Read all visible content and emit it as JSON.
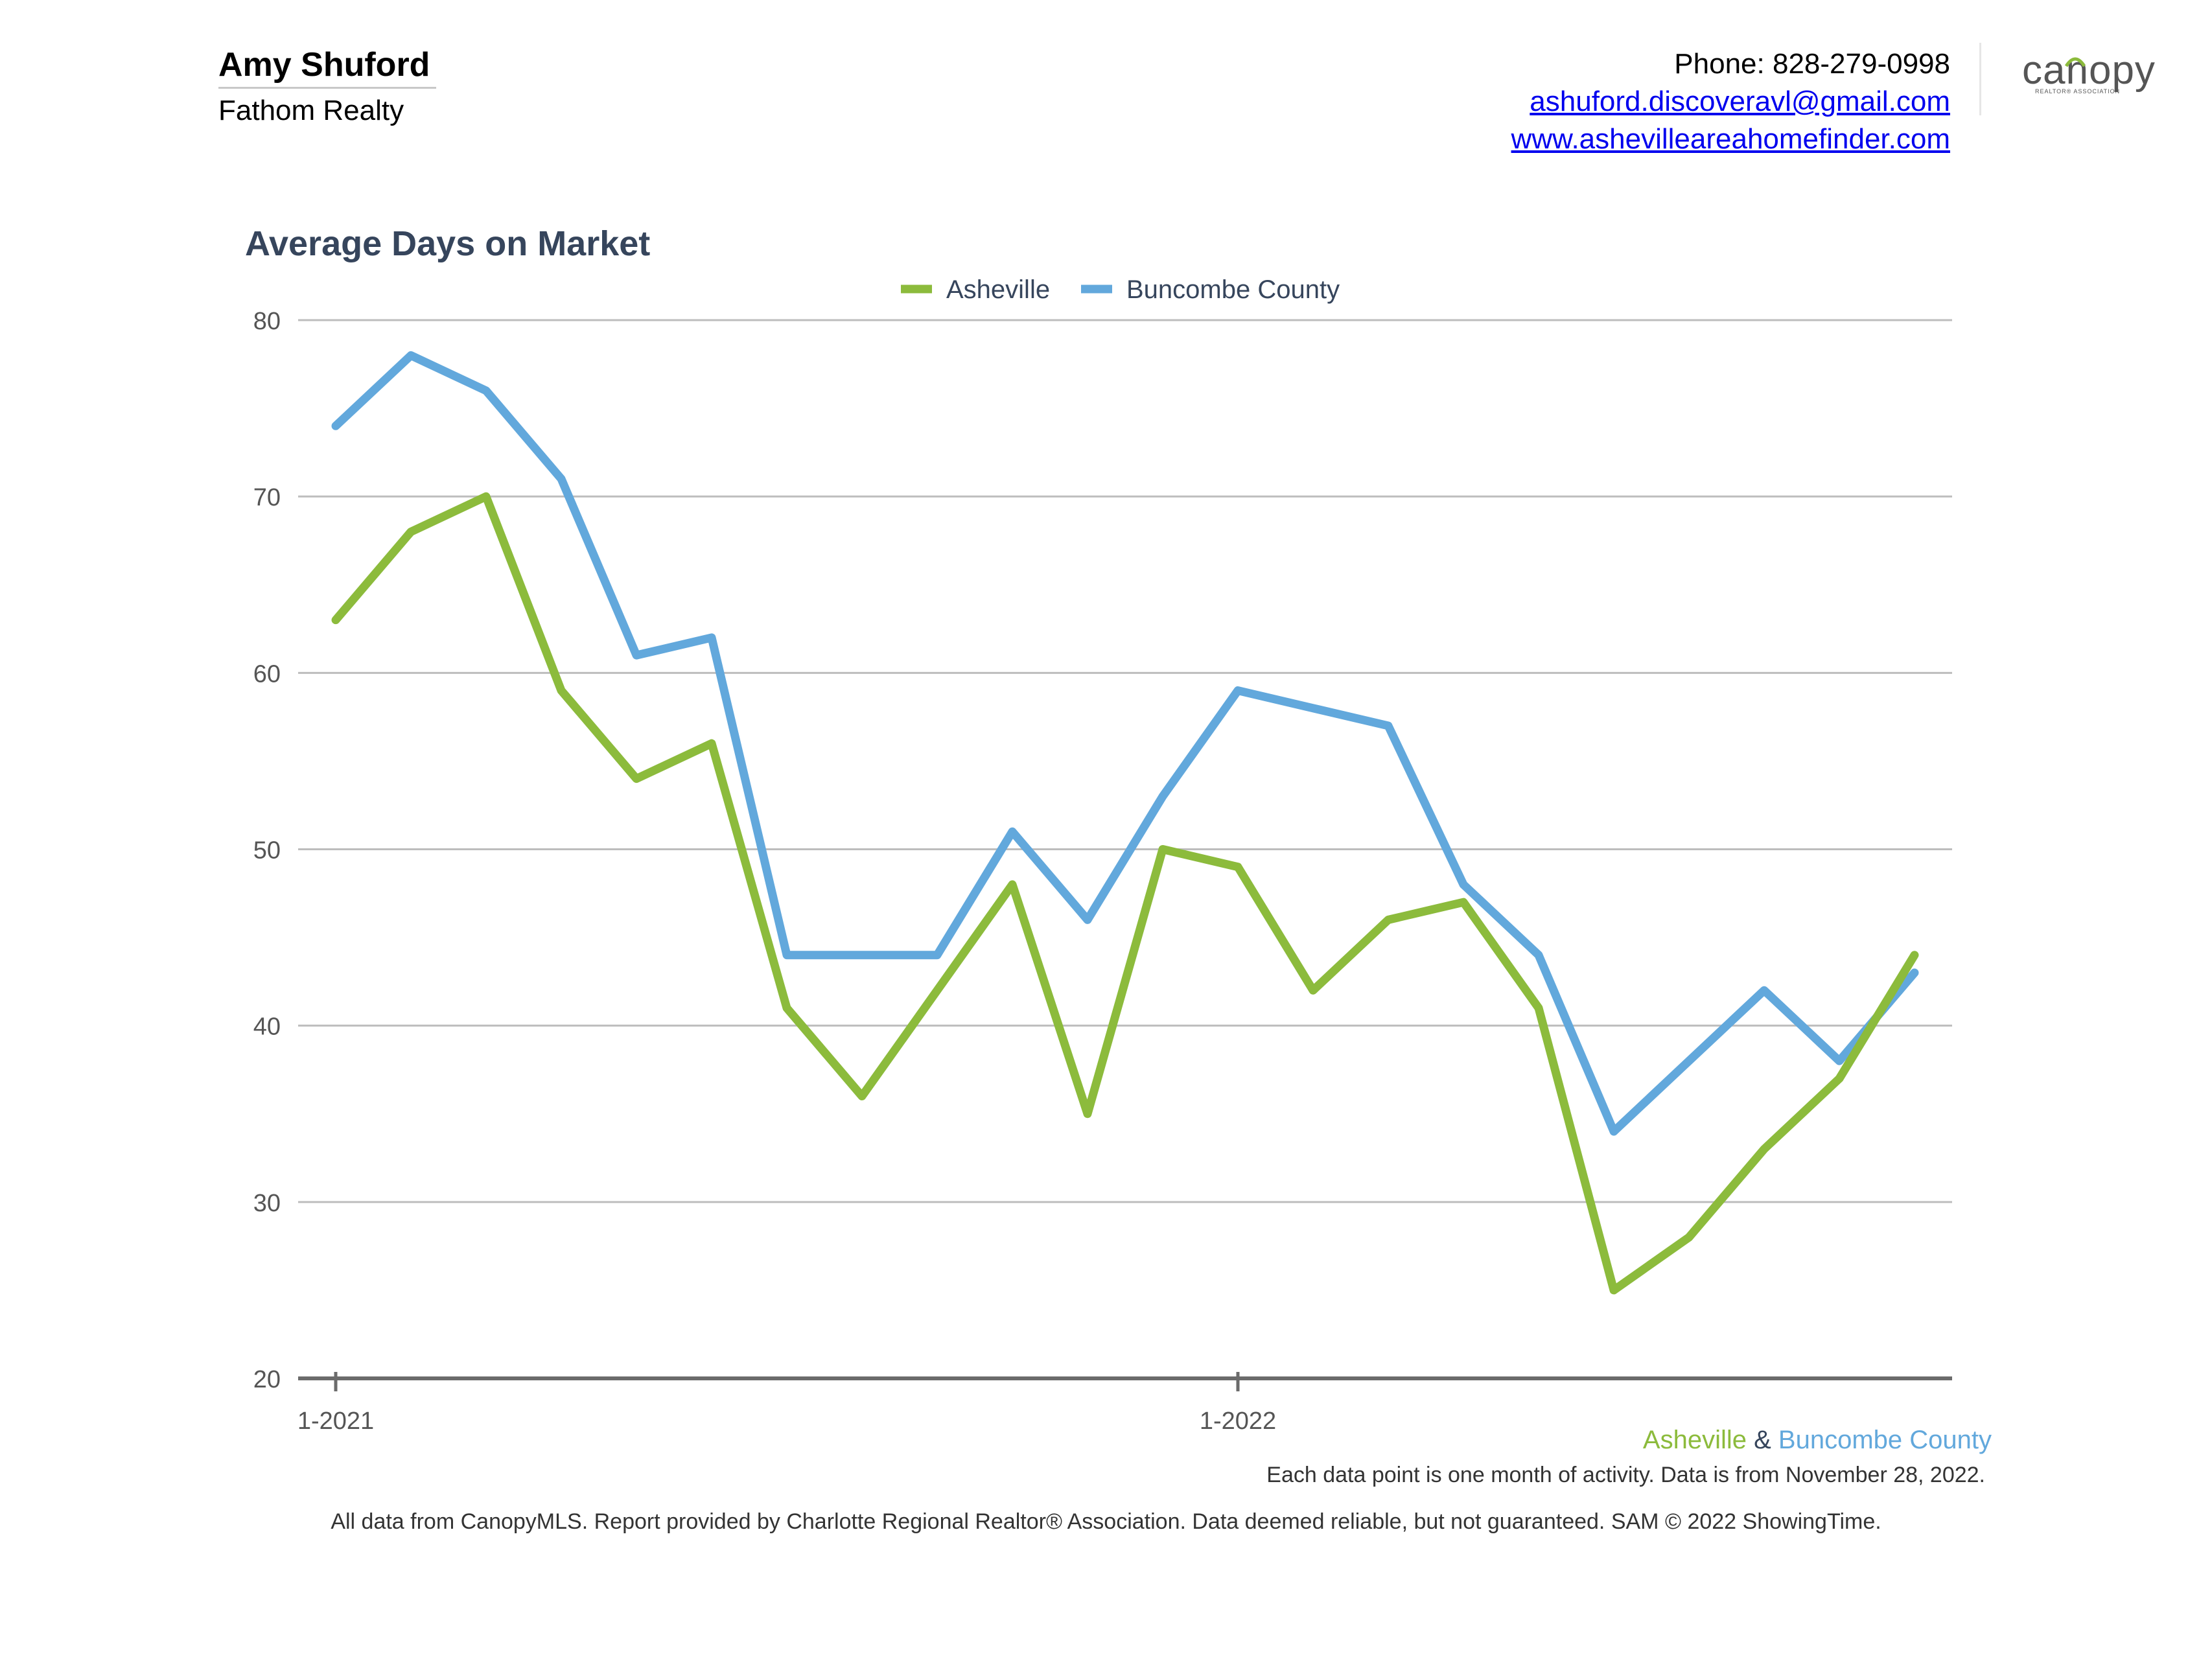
{
  "agent": {
    "name": "Amy Shuford",
    "company": "Fathom Realty",
    "phone": "Phone: 828-279-0998",
    "email": "ashuford.discoveravl@gmail.com",
    "website": "www.ashevilleareahomefinder.com"
  },
  "logo": {
    "text": "canopy",
    "sub": "REALTOR® ASSOCIATION"
  },
  "chart_data": {
    "type": "line",
    "title": "Average Days on Market",
    "xlabel": "",
    "ylabel": "",
    "ylim": [
      20,
      80
    ],
    "yticks": [
      20,
      30,
      40,
      50,
      60,
      70,
      80
    ],
    "grid": true,
    "legend": "top-center",
    "x": [
      "1-2021",
      "2-2021",
      "3-2021",
      "4-2021",
      "5-2021",
      "6-2021",
      "7-2021",
      "8-2021",
      "9-2021",
      "10-2021",
      "11-2021",
      "12-2021",
      "1-2022",
      "2-2022",
      "3-2022",
      "4-2022",
      "5-2022",
      "6-2022",
      "7-2022",
      "8-2022",
      "9-2022",
      "10-2022"
    ],
    "xtick_labels": [
      {
        "label": "1-2021",
        "index": 0
      },
      {
        "label": "1-2022",
        "index": 12
      }
    ],
    "series": [
      {
        "name": "Asheville",
        "color": "#8cbb3c",
        "values": [
          63,
          68,
          70,
          59,
          54,
          56,
          41,
          36,
          42,
          48,
          35,
          50,
          49,
          42,
          46,
          47,
          41,
          25,
          28,
          33,
          37,
          44
        ]
      },
      {
        "name": "Buncombe County",
        "color": "#62a8dc",
        "values": [
          74,
          78,
          76,
          71,
          61,
          62,
          44,
          44,
          44,
          51,
          46,
          53,
          59,
          58,
          57,
          48,
          44,
          34,
          38,
          42,
          38,
          43
        ]
      }
    ]
  },
  "caption": {
    "series_a": "Asheville",
    "joiner": "&",
    "series_b": "Buncombe County",
    "note": "Each data point is one month of activity. Data is from November 28, 2022."
  },
  "footer": "All data from CanopyMLS. Report provided by Charlotte Regional Realtor® Association. Data deemed reliable, but not guaranteed. SAM © 2022 ShowingTime."
}
